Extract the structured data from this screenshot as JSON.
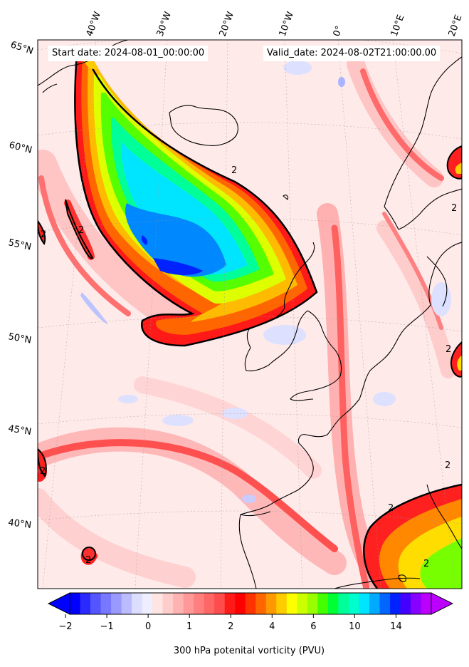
{
  "header": {
    "start_date": "Start date: 2024-08-01_00:00:00",
    "valid_date": "Valid_date: 2024-08-02T21:00:00.00"
  },
  "map": {
    "variable": "300 hPa potenital vorticity (PVU)",
    "contour_level_label": "2",
    "longitude_labels": [
      "40°W",
      "30°W",
      "20°W",
      "10°W",
      "0°",
      "10°E",
      "20°E"
    ],
    "latitude_labels": [
      "65°N",
      "60°N",
      "55°N",
      "50°N",
      "45°N",
      "40°N"
    ]
  },
  "colorbar": {
    "tick_labels": [
      "−2",
      "−1",
      "0",
      "1",
      "2",
      "4",
      "6",
      "10",
      "14"
    ],
    "colors": [
      "#0000ff",
      "#2a2aff",
      "#5555ff",
      "#7777ff",
      "#9999ff",
      "#bbbbff",
      "#ddddff",
      "#eeeeff",
      "#ffe4e4",
      "#ffcccc",
      "#ffb2b2",
      "#ff9999",
      "#ff7f7f",
      "#ff6666",
      "#ff4c4c",
      "#ff1a1a",
      "#ff0000",
      "#ff3300",
      "#ff6600",
      "#ff9900",
      "#ffcc00",
      "#ffff00",
      "#ccff00",
      "#99ff00",
      "#44ff00",
      "#00ff33",
      "#00ff99",
      "#00ffcc",
      "#00e5ff",
      "#00aaff",
      "#0066ff",
      "#0022ff",
      "#4400ff",
      "#8800ff",
      "#bb00ff"
    ],
    "extend": "both"
  }
}
